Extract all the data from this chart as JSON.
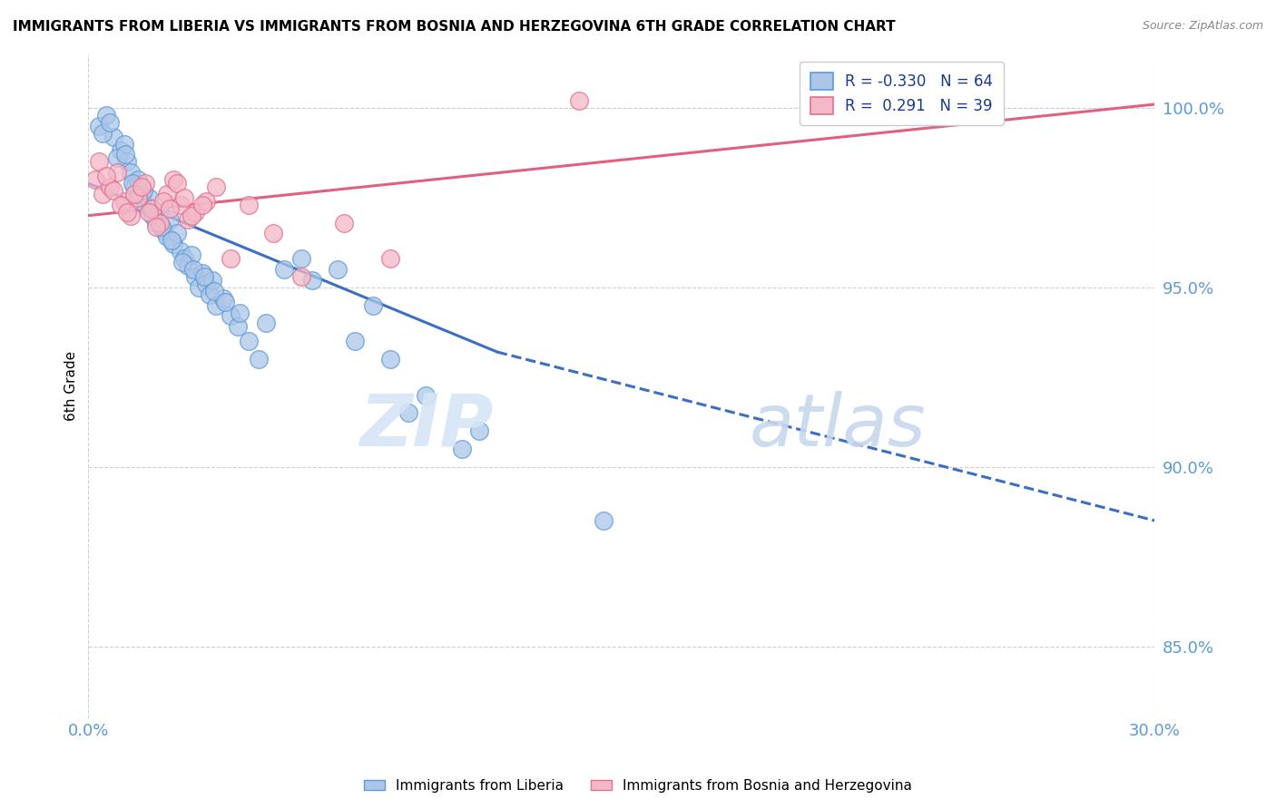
{
  "title": "IMMIGRANTS FROM LIBERIA VS IMMIGRANTS FROM BOSNIA AND HERZEGOVINA 6TH GRADE CORRELATION CHART",
  "source": "Source: ZipAtlas.com",
  "ylabel": "6th Grade",
  "xlim": [
    0.0,
    30.0
  ],
  "ylim": [
    83.0,
    101.5
  ],
  "yticks": [
    85.0,
    90.0,
    95.0,
    100.0
  ],
  "color_liberia_fill": "#adc6e8",
  "color_liberia_edge": "#5b9bd5",
  "color_bosnia_fill": "#f4b8c8",
  "color_bosnia_edge": "#e07090",
  "color_liberia_line": "#3a6fc4",
  "color_bosnia_line": "#e06080",
  "color_axis_text": "#5b9bd5",
  "watermark_color": "#d5e5f5",
  "blue_line_x0": 0.0,
  "blue_line_y0": 97.9,
  "blue_line_x1": 11.5,
  "blue_line_y1": 93.2,
  "blue_dash_x1": 30.0,
  "blue_dash_y1": 88.5,
  "pink_line_x0": 0.0,
  "pink_line_y0": 97.0,
  "pink_line_x1": 30.0,
  "pink_line_y1": 100.1,
  "liberia_x": [
    0.3,
    0.5,
    0.7,
    0.9,
    1.0,
    1.1,
    1.2,
    1.3,
    1.4,
    1.5,
    1.6,
    1.7,
    1.8,
    1.9,
    2.0,
    2.1,
    2.2,
    2.3,
    2.4,
    2.5,
    2.6,
    2.7,
    2.8,
    2.9,
    3.0,
    3.1,
    3.2,
    3.3,
    3.4,
    3.5,
    3.6,
    3.8,
    4.0,
    4.2,
    4.5,
    4.8,
    5.0,
    5.5,
    6.0,
    6.3,
    7.0,
    7.5,
    8.0,
    8.5,
    9.0,
    9.5,
    10.5,
    11.0,
    0.4,
    0.6,
    0.8,
    1.05,
    1.25,
    1.55,
    1.75,
    2.05,
    2.35,
    2.65,
    2.95,
    3.25,
    3.55,
    3.85,
    4.25,
    14.5
  ],
  "liberia_y": [
    99.5,
    99.8,
    99.2,
    98.8,
    99.0,
    98.5,
    98.2,
    97.8,
    98.0,
    97.6,
    97.3,
    97.5,
    97.0,
    96.8,
    97.1,
    96.6,
    96.4,
    96.9,
    96.2,
    96.5,
    96.0,
    95.8,
    95.6,
    95.9,
    95.3,
    95.0,
    95.4,
    95.1,
    94.8,
    95.2,
    94.5,
    94.7,
    94.2,
    93.9,
    93.5,
    93.0,
    94.0,
    95.5,
    95.8,
    95.2,
    95.5,
    93.5,
    94.5,
    93.0,
    91.5,
    92.0,
    90.5,
    91.0,
    99.3,
    99.6,
    98.6,
    98.7,
    97.9,
    97.7,
    97.2,
    96.7,
    96.3,
    95.7,
    95.5,
    95.3,
    94.9,
    94.6,
    94.3,
    88.5
  ],
  "bosnia_x": [
    0.2,
    0.4,
    0.6,
    0.8,
    1.0,
    1.2,
    1.4,
    1.6,
    1.8,
    2.0,
    2.2,
    2.4,
    2.6,
    2.8,
    3.0,
    3.3,
    3.6,
    4.0,
    4.5,
    5.2,
    6.0,
    7.2,
    8.5,
    13.8,
    0.3,
    0.5,
    0.7,
    0.9,
    1.1,
    1.3,
    1.5,
    1.7,
    1.9,
    2.1,
    2.3,
    2.5,
    2.7,
    2.9,
    3.2
  ],
  "bosnia_y": [
    98.0,
    97.6,
    97.8,
    98.2,
    97.4,
    97.0,
    97.5,
    97.9,
    97.2,
    96.8,
    97.6,
    98.0,
    97.3,
    96.9,
    97.1,
    97.4,
    97.8,
    95.8,
    97.3,
    96.5,
    95.3,
    96.8,
    95.8,
    100.2,
    98.5,
    98.1,
    97.7,
    97.3,
    97.1,
    97.6,
    97.8,
    97.1,
    96.7,
    97.4,
    97.2,
    97.9,
    97.5,
    97.0,
    97.3
  ]
}
